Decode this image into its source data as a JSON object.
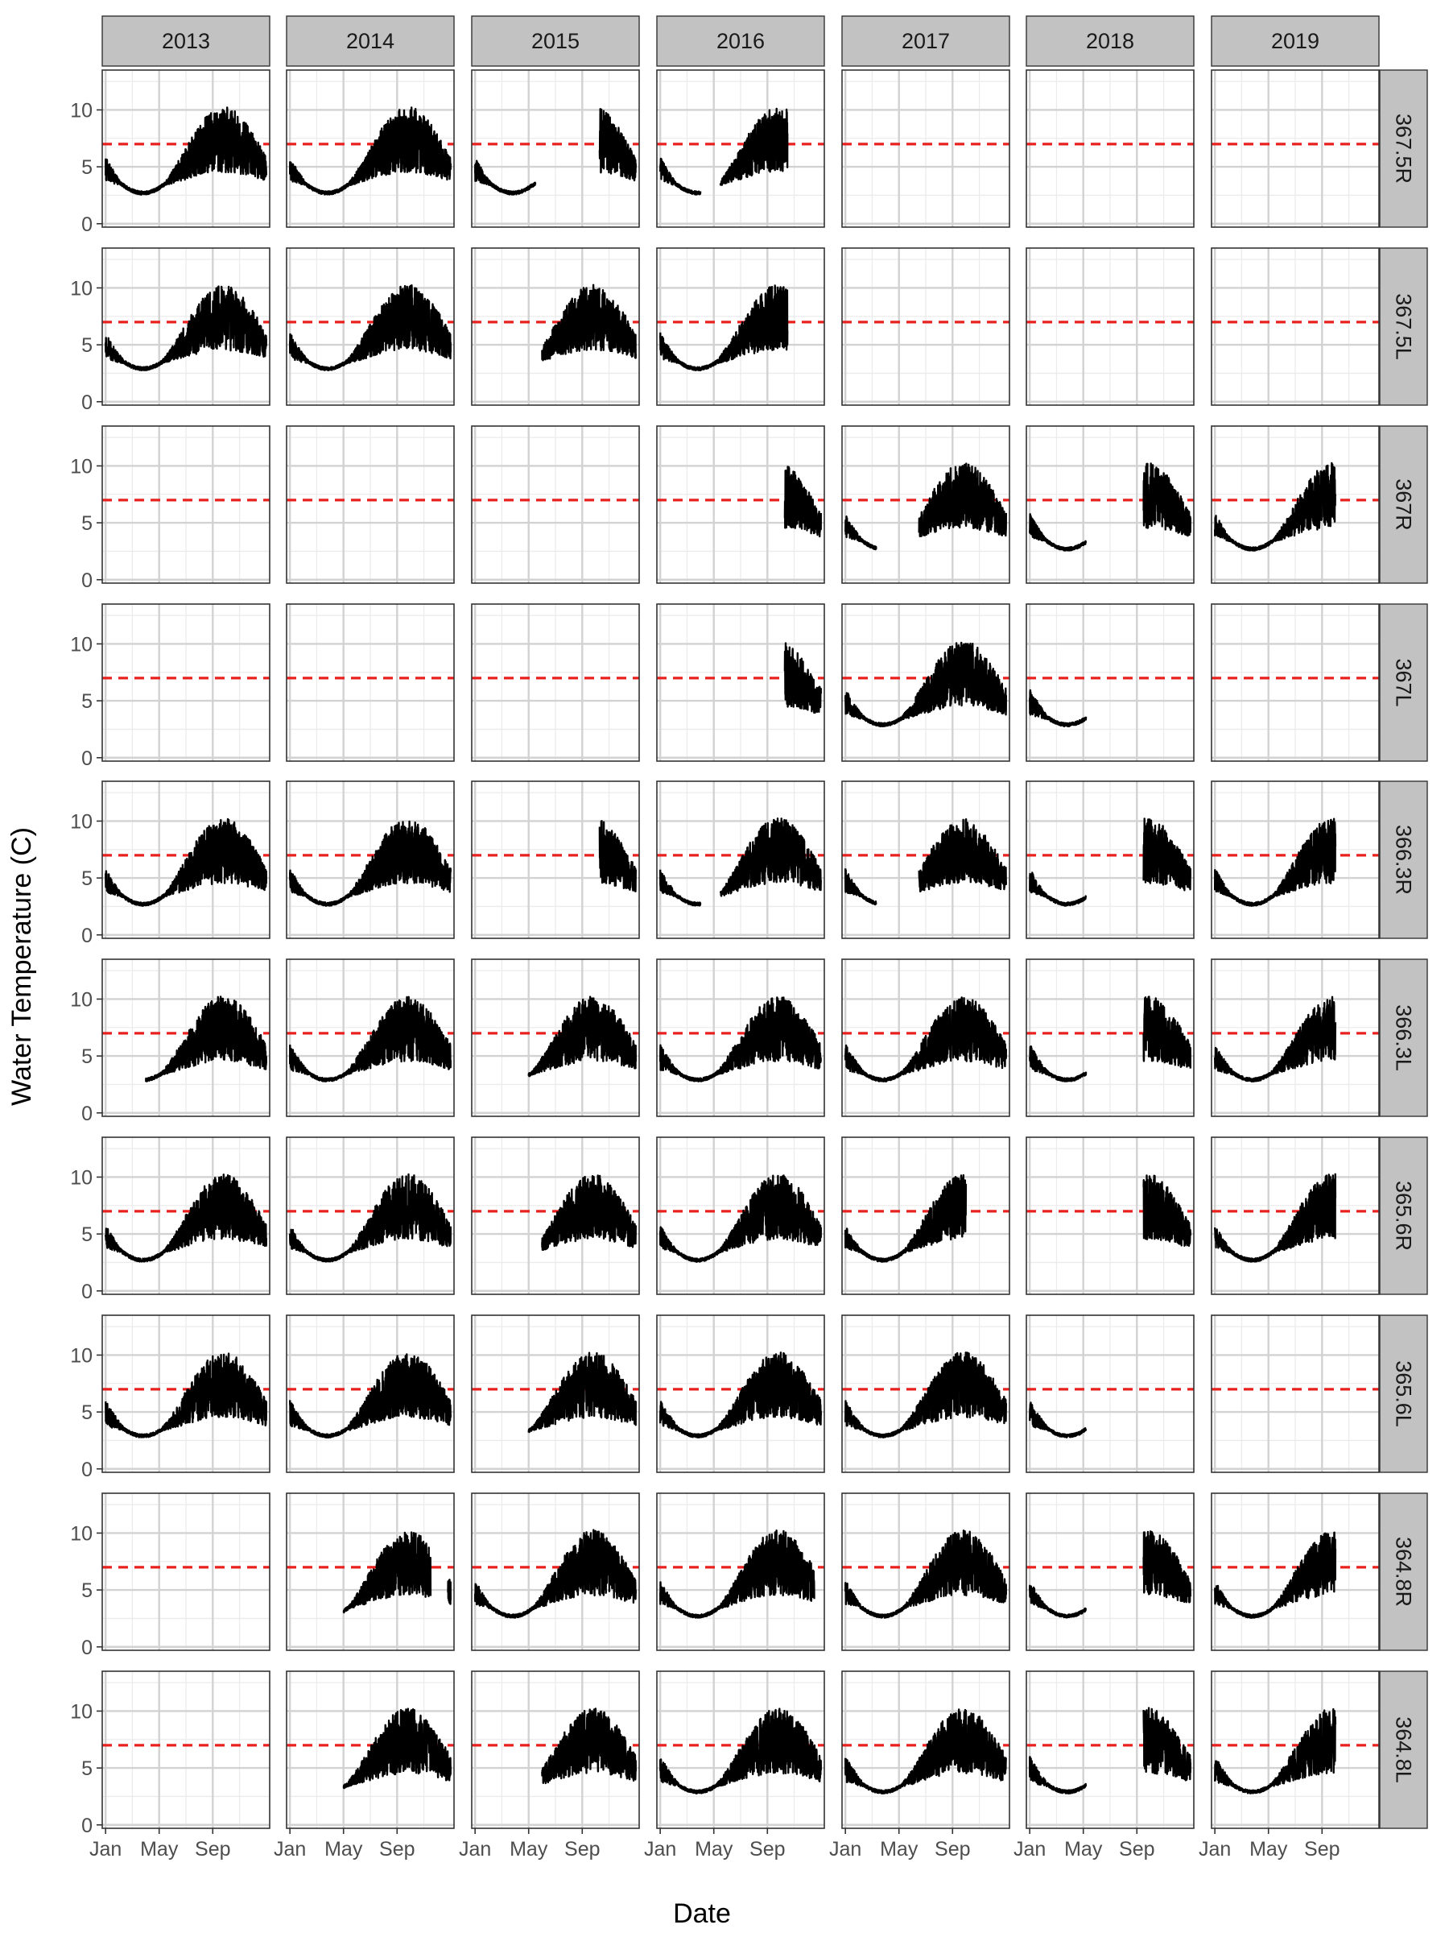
{
  "chart_data": {
    "type": "line",
    "facet_layout": "grid",
    "xlabel": "Date",
    "ylabel": "Water Temperature (C)",
    "ylim": [
      -0.3,
      13.5
    ],
    "y_ticks": [
      0,
      5,
      10
    ],
    "x_tick_labels": [
      "Jan",
      "May",
      "Sep"
    ],
    "x_tick_months": [
      1,
      5,
      9
    ],
    "reference_line": {
      "y": 7,
      "color": "#e8201e",
      "style": "dashed"
    },
    "columns": [
      "2013",
      "2014",
      "2015",
      "2016",
      "2017",
      "2018",
      "2019"
    ],
    "rows": [
      "367.5R",
      "367.5L",
      "367R",
      "367L",
      "366.3R",
      "366.3L",
      "365.6R",
      "365.6L",
      "364.8R",
      "364.8L"
    ],
    "grid": true,
    "series_color": "#000000",
    "strip_fill": "#c2c2c2",
    "series": [
      {
        "row": "367.5R",
        "year": "2013",
        "start_month": 1.0,
        "end_month": 13.0
      },
      {
        "row": "367.5R",
        "year": "2014",
        "start_month": 1.0,
        "end_month": 13.0
      },
      {
        "row": "367.5R",
        "year": "2015",
        "start_month": 1.0,
        "end_month": 5.5
      },
      {
        "row": "367.5R",
        "year": "2015",
        "start_month": 10.3,
        "end_month": 13.0
      },
      {
        "row": "367.5R",
        "year": "2016",
        "start_month": 1.0,
        "end_month": 4.0
      },
      {
        "row": "367.5R",
        "year": "2016",
        "start_month": 5.5,
        "end_month": 10.5
      },
      {
        "row": "367.5L",
        "year": "2013",
        "start_month": 1.0,
        "end_month": 13.0
      },
      {
        "row": "367.5L",
        "year": "2014",
        "start_month": 1.0,
        "end_month": 13.0
      },
      {
        "row": "367.5L",
        "year": "2015",
        "start_month": 6.0,
        "end_month": 13.0
      },
      {
        "row": "367.5L",
        "year": "2016",
        "start_month": 1.0,
        "end_month": 10.5
      },
      {
        "row": "367R",
        "year": "2016",
        "start_month": 10.3,
        "end_month": 13.0
      },
      {
        "row": "367R",
        "year": "2017",
        "start_month": 1.0,
        "end_month": 3.3
      },
      {
        "row": "367R",
        "year": "2017",
        "start_month": 6.5,
        "end_month": 13.0
      },
      {
        "row": "367R",
        "year": "2018",
        "start_month": 1.0,
        "end_month": 5.2
      },
      {
        "row": "367R",
        "year": "2018",
        "start_month": 9.5,
        "end_month": 13.0
      },
      {
        "row": "367R",
        "year": "2019",
        "start_month": 1.0,
        "end_month": 10.0
      },
      {
        "row": "367L",
        "year": "2016",
        "start_month": 10.3,
        "end_month": 13.0
      },
      {
        "row": "367L",
        "year": "2017",
        "start_month": 1.0,
        "end_month": 13.0
      },
      {
        "row": "367L",
        "year": "2018",
        "start_month": 1.0,
        "end_month": 5.2
      },
      {
        "row": "366.3R",
        "year": "2013",
        "start_month": 1.0,
        "end_month": 13.0
      },
      {
        "row": "366.3R",
        "year": "2014",
        "start_month": 1.0,
        "end_month": 13.0
      },
      {
        "row": "366.3R",
        "year": "2015",
        "start_month": 10.3,
        "end_month": 13.0
      },
      {
        "row": "366.3R",
        "year": "2016",
        "start_month": 1.0,
        "end_month": 4.0
      },
      {
        "row": "366.3R",
        "year": "2016",
        "start_month": 5.5,
        "end_month": 13.0
      },
      {
        "row": "366.3R",
        "year": "2017",
        "start_month": 1.0,
        "end_month": 3.3
      },
      {
        "row": "366.3R",
        "year": "2017",
        "start_month": 6.5,
        "end_month": 13.0
      },
      {
        "row": "366.3R",
        "year": "2018",
        "start_month": 1.0,
        "end_month": 5.2
      },
      {
        "row": "366.3R",
        "year": "2018",
        "start_month": 9.5,
        "end_month": 13.0
      },
      {
        "row": "366.3R",
        "year": "2019",
        "start_month": 1.0,
        "end_month": 10.0
      },
      {
        "row": "366.3L",
        "year": "2013",
        "start_month": 4.0,
        "end_month": 13.0
      },
      {
        "row": "366.3L",
        "year": "2014",
        "start_month": 1.0,
        "end_month": 13.0
      },
      {
        "row": "366.3L",
        "year": "2015",
        "start_month": 5.0,
        "end_month": 13.0
      },
      {
        "row": "366.3L",
        "year": "2016",
        "start_month": 1.0,
        "end_month": 13.0
      },
      {
        "row": "366.3L",
        "year": "2017",
        "start_month": 1.0,
        "end_month": 13.0
      },
      {
        "row": "366.3L",
        "year": "2018",
        "start_month": 1.0,
        "end_month": 5.2
      },
      {
        "row": "366.3L",
        "year": "2018",
        "start_month": 9.5,
        "end_month": 13.0
      },
      {
        "row": "366.3L",
        "year": "2019",
        "start_month": 1.0,
        "end_month": 10.0
      },
      {
        "row": "365.6R",
        "year": "2013",
        "start_month": 1.0,
        "end_month": 13.0
      },
      {
        "row": "365.6R",
        "year": "2014",
        "start_month": 1.0,
        "end_month": 13.0
      },
      {
        "row": "365.6R",
        "year": "2015",
        "start_month": 6.0,
        "end_month": 13.0
      },
      {
        "row": "365.6R",
        "year": "2016",
        "start_month": 1.0,
        "end_month": 13.0
      },
      {
        "row": "365.6R",
        "year": "2017",
        "start_month": 1.0,
        "end_month": 10.0
      },
      {
        "row": "365.6R",
        "year": "2018",
        "start_month": 9.5,
        "end_month": 13.0
      },
      {
        "row": "365.6R",
        "year": "2019",
        "start_month": 1.0,
        "end_month": 10.0
      },
      {
        "row": "365.6L",
        "year": "2013",
        "start_month": 1.0,
        "end_month": 13.0
      },
      {
        "row": "365.6L",
        "year": "2014",
        "start_month": 1.0,
        "end_month": 13.0
      },
      {
        "row": "365.6L",
        "year": "2015",
        "start_month": 5.0,
        "end_month": 13.0
      },
      {
        "row": "365.6L",
        "year": "2016",
        "start_month": 1.0,
        "end_month": 13.0
      },
      {
        "row": "365.6L",
        "year": "2017",
        "start_month": 1.0,
        "end_month": 13.0
      },
      {
        "row": "365.6L",
        "year": "2018",
        "start_month": 1.0,
        "end_month": 5.2
      },
      {
        "row": "364.8R",
        "year": "2014",
        "start_month": 5.0,
        "end_month": 11.5
      },
      {
        "row": "364.8R",
        "year": "2014",
        "start_month": 12.8,
        "end_month": 13.0
      },
      {
        "row": "364.8R",
        "year": "2015",
        "start_month": 1.0,
        "end_month": 13.0
      },
      {
        "row": "364.8R",
        "year": "2016",
        "start_month": 1.0,
        "end_month": 12.5
      },
      {
        "row": "364.8R",
        "year": "2017",
        "start_month": 1.0,
        "end_month": 13.0
      },
      {
        "row": "364.8R",
        "year": "2018",
        "start_month": 1.0,
        "end_month": 5.2
      },
      {
        "row": "364.8R",
        "year": "2018",
        "start_month": 9.5,
        "end_month": 13.0
      },
      {
        "row": "364.8R",
        "year": "2019",
        "start_month": 1.0,
        "end_month": 10.0
      },
      {
        "row": "364.8L",
        "year": "2014",
        "start_month": 5.0,
        "end_month": 13.0
      },
      {
        "row": "364.8L",
        "year": "2015",
        "start_month": 6.0,
        "end_month": 13.0
      },
      {
        "row": "364.8L",
        "year": "2016",
        "start_month": 1.0,
        "end_month": 13.0
      },
      {
        "row": "364.8L",
        "year": "2017",
        "start_month": 1.0,
        "end_month": 13.0
      },
      {
        "row": "364.8L",
        "year": "2018",
        "start_month": 1.0,
        "end_month": 5.2
      },
      {
        "row": "364.8L",
        "year": "2018",
        "start_month": 9.5,
        "end_month": 13.0
      },
      {
        "row": "364.8L",
        "year": "2019",
        "start_month": 1.0,
        "end_month": 10.0
      }
    ]
  }
}
